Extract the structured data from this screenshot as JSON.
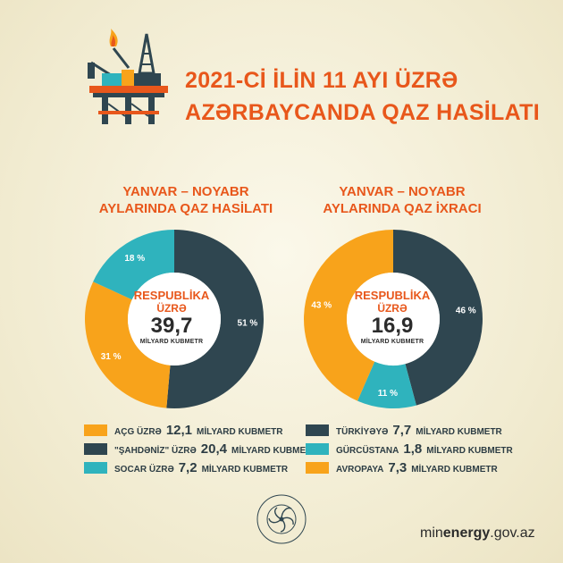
{
  "title": {
    "line1": "2021-Cİ İLİN 11 AYI ÜZRƏ",
    "line2": "AZƏRBAYCANDA QAZ HASİLATI"
  },
  "icons": {
    "rig": "oil-rig-icon",
    "seal": "ministry-seal-icon"
  },
  "seal_text": "AZƏRBAYCAN RESPUBLİKASI ENERGETİKA NAZİRLİYİ",
  "website": {
    "prefix": "min",
    "bold": "energy",
    "suffix": ".gov.az"
  },
  "colors": {
    "orange": "#f8a31b",
    "dark": "#2f4650",
    "teal": "#2fb3bd",
    "accent": "#e8571b"
  },
  "left": {
    "heading_line1": "YANVAR – NOYABR",
    "heading_line2": "AYLARINDA QAZ HASİLATI",
    "center_line1": "RESPUBLİKA",
    "center_line2": "ÜZRƏ",
    "center_value": "39,7",
    "center_unit": "MİLYARD KUBMETR",
    "legend": [
      {
        "name": "AÇG ÜZRƏ",
        "value": "12,1",
        "unit": "MİLYARD KUBMETR"
      },
      {
        "name": "\"ŞAHDƏNİZ\" ÜZRƏ",
        "value": "20,4",
        "unit": "MİLYARD KUBMETR"
      },
      {
        "name": "SOCAR ÜZRƏ",
        "value": "7,2",
        "unit": "MİLYARD KUBMETR"
      }
    ]
  },
  "right": {
    "heading_line1": "YANVAR – NOYABR",
    "heading_line2": "AYLARINDA QAZ İXRACI",
    "center_line1": "RESPUBLİKA",
    "center_line2": "ÜZRƏ",
    "center_value": "16,9",
    "center_unit": "MİLYARD KUBMETR",
    "legend": [
      {
        "name": "TÜRKİYƏYƏ",
        "value": "7,7",
        "unit": "MİLYARD KUBMETR"
      },
      {
        "name": "GÜRCÜSTANA",
        "value": "1,8",
        "unit": "MİLYARD KUBMETR"
      },
      {
        "name": "AVROPAYA",
        "value": "7,3",
        "unit": "MİLYARD KUBMETR"
      }
    ]
  },
  "chart_data": [
    {
      "type": "pie",
      "title": "YANVAR – NOYABR AYLARINDA QAZ HASİLATI",
      "categories": [
        "\"ŞAHDƏNİZ\" ÜZRƏ",
        "AÇG ÜZRƏ",
        "SOCAR ÜZRƏ"
      ],
      "values": [
        20.4,
        12.1,
        7.2
      ],
      "percent_labels": [
        "51 %",
        "31 %",
        "18 %"
      ],
      "colors": [
        "#2f4650",
        "#f8a31b",
        "#2fb3bd"
      ],
      "total": 39.7,
      "unit": "MİLYARD KUBMETR"
    },
    {
      "type": "pie",
      "title": "YANVAR – NOYABR AYLARINDA QAZ İXRACI",
      "categories": [
        "TÜRKİYƏYƏ",
        "GÜRCÜSTANA",
        "AVROPAYA"
      ],
      "values": [
        7.7,
        1.8,
        7.3
      ],
      "percent_labels": [
        "46 %",
        "11 %",
        "43 %"
      ],
      "colors": [
        "#2f4650",
        "#2fb3bd",
        "#f8a31b"
      ],
      "total": 16.9,
      "unit": "MİLYARD KUBMETR"
    }
  ]
}
